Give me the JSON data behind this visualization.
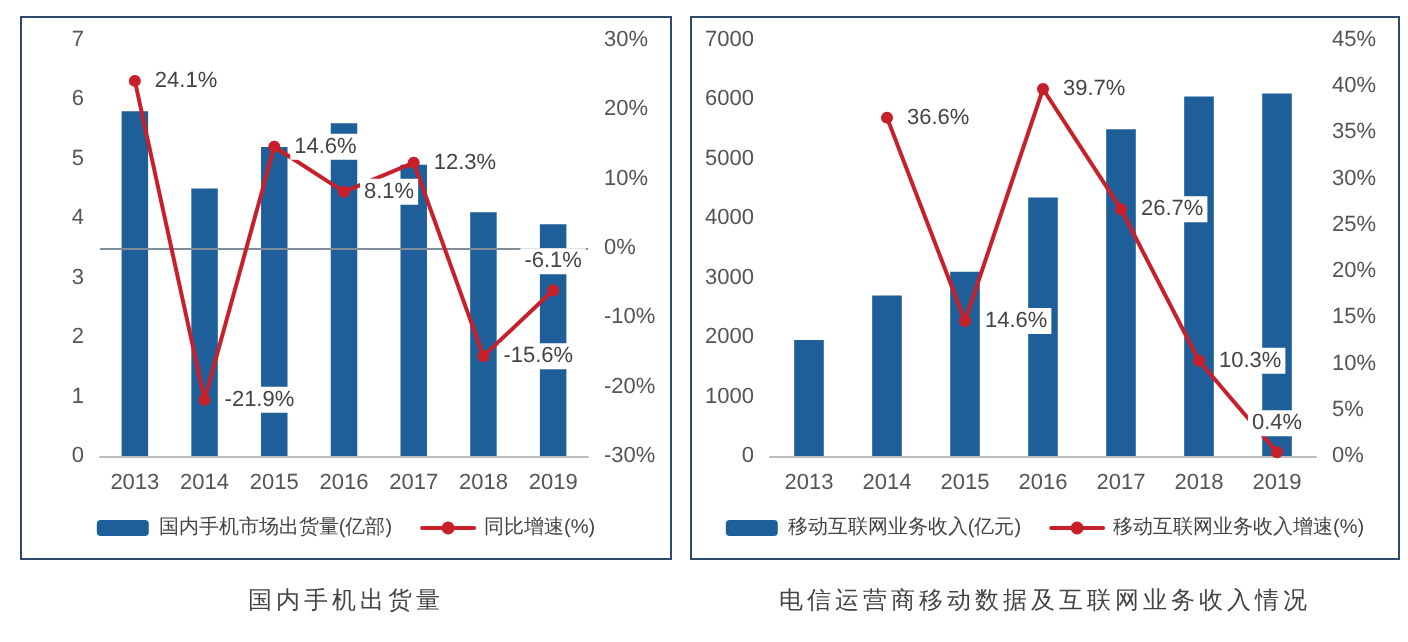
{
  "chart_data": [
    {
      "type": "bar",
      "title": "国内手机出货量",
      "categories": [
        "2013",
        "2014",
        "2015",
        "2016",
        "2017",
        "2018",
        "2019"
      ],
      "series": [
        {
          "name": "国内手机市场出货量(亿部)",
          "color": "#1f5f99",
          "values": [
            5.8,
            4.5,
            5.2,
            5.6,
            4.9,
            4.1,
            3.9
          ]
        },
        {
          "name": "同比增速(%)",
          "type": "line",
          "axis": "y2",
          "color": "#c8202a",
          "marker": "circle",
          "values": [
            24.1,
            -21.9,
            14.6,
            8.1,
            12.3,
            -15.6,
            -6.1
          ],
          "value_labels": [
            "24.1%",
            "-21.9%",
            "14.6%",
            "8.1%",
            "12.3%",
            "-15.6%",
            "-6.1%"
          ]
        }
      ],
      "ylim": [
        0,
        7
      ],
      "yticks": [
        0,
        1,
        2,
        3,
        4,
        5,
        6,
        7
      ],
      "y2lim": [
        -30,
        30
      ],
      "y2ticks": [
        {
          "value": -30,
          "label": "-30%"
        },
        {
          "value": -20,
          "label": "-20%"
        },
        {
          "value": -10,
          "label": "-10%"
        },
        {
          "value": 0,
          "label": "0%"
        },
        {
          "value": 10,
          "label": "10%"
        },
        {
          "value": 20,
          "label": "20%"
        },
        {
          "value": 30,
          "label": "30%"
        }
      ],
      "ref_lines": [
        {
          "axis": "y2",
          "value": 0,
          "label": null,
          "color": "#7f8c99"
        }
      ],
      "grid": false,
      "legend": "bottom"
    },
    {
      "type": "bar",
      "title": "电信运营商移动数据及互联网业务收入情况",
      "categories": [
        "2013",
        "2014",
        "2015",
        "2016",
        "2017",
        "2018",
        "2019"
      ],
      "series": [
        {
          "name": "移动互联网业务收入(亿元)",
          "color": "#1f5f99",
          "values": [
            1950,
            2700,
            3100,
            4350,
            5500,
            6050,
            6100
          ]
        },
        {
          "name": "移动互联网业务收入增速(%)",
          "type": "line",
          "axis": "y2",
          "color": "#c8202a",
          "marker": "circle",
          "values": [
            null,
            36.6,
            14.6,
            39.7,
            26.7,
            10.3,
            0.4
          ],
          "value_labels": [
            null,
            "36.6%",
            "14.6%",
            "39.7%",
            "26.7%",
            "10.3%",
            "0.4%"
          ]
        }
      ],
      "ylim": [
        0,
        7000
      ],
      "yticks": [
        0,
        1000,
        2000,
        3000,
        4000,
        5000,
        6000,
        7000
      ],
      "y2lim": [
        0,
        45
      ],
      "y2ticks": [
        {
          "value": 0,
          "label": "0%"
        },
        {
          "value": 5,
          "label": "5%"
        },
        {
          "value": 10,
          "label": "10%"
        },
        {
          "value": 15,
          "label": "15%"
        },
        {
          "value": 20,
          "label": "20%"
        },
        {
          "value": 25,
          "label": "25%"
        },
        {
          "value": 30,
          "label": "30%"
        },
        {
          "value": 35,
          "label": "35%"
        },
        {
          "value": 40,
          "label": "40%"
        },
        {
          "value": 45,
          "label": "45%"
        }
      ],
      "grid": false,
      "legend": "bottom"
    }
  ]
}
